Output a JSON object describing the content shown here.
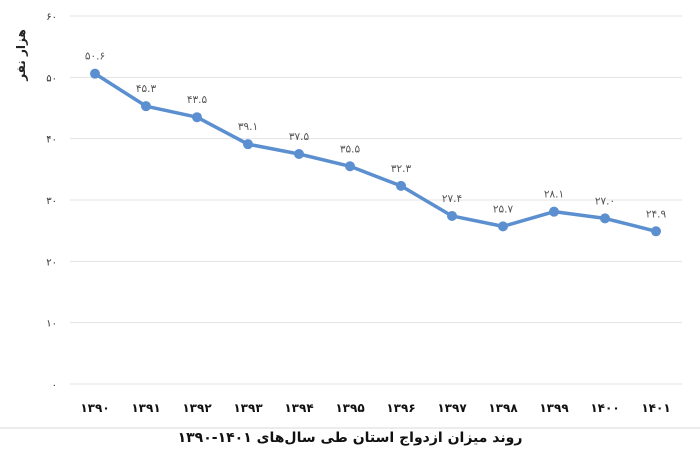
{
  "chart_data": {
    "type": "line",
    "title": "روند میزان ازدواج استان طی سال‌های ۱۴۰۱-۱۳۹۰",
    "xlabel": "",
    "ylabel": "هزار نفر",
    "categories": [
      "۱۳۹۰",
      "۱۳۹۱",
      "۱۳۹۲",
      "۱۳۹۳",
      "۱۳۹۴",
      "۱۳۹۵",
      "۱۳۹۶",
      "۱۳۹۷",
      "۱۳۹۸",
      "۱۳۹۹",
      "۱۴۰۰",
      "۱۴۰۱"
    ],
    "categories_latin": [
      1390,
      1391,
      1392,
      1393,
      1394,
      1395,
      1396,
      1397,
      1398,
      1399,
      1400,
      1401
    ],
    "series": [
      {
        "name": "ازدواج",
        "values": [
          50.6,
          45.3,
          43.5,
          39.1,
          37.5,
          35.5,
          32.3,
          27.4,
          25.7,
          28.1,
          27.0,
          24.9
        ],
        "labels": [
          "۵۰.۶",
          "۴۵.۳",
          "۴۳.۵",
          "۳۹.۱",
          "۳۷.۵",
          "۳۵.۵",
          "۳۲.۳",
          "۲۷.۴",
          "۲۵.۷",
          "۲۸.۱",
          "۲۷.۰",
          "۲۴.۹"
        ],
        "color": "#5b8fd0"
      }
    ],
    "ylim": [
      0,
      60
    ],
    "yticks": [
      0,
      10,
      20,
      30,
      40,
      50,
      60
    ],
    "ytick_labels": [
      "۰",
      "۱۰",
      "۲۰",
      "۳۰",
      "۴۰",
      "۵۰",
      "۶۰"
    ],
    "grid": true,
    "legend": "none"
  },
  "caption": "روند میزان ازدواج استان طی سال‌های ۱۴۰۱-۱۳۹۰",
  "yaxis_title": "هزار نفر"
}
